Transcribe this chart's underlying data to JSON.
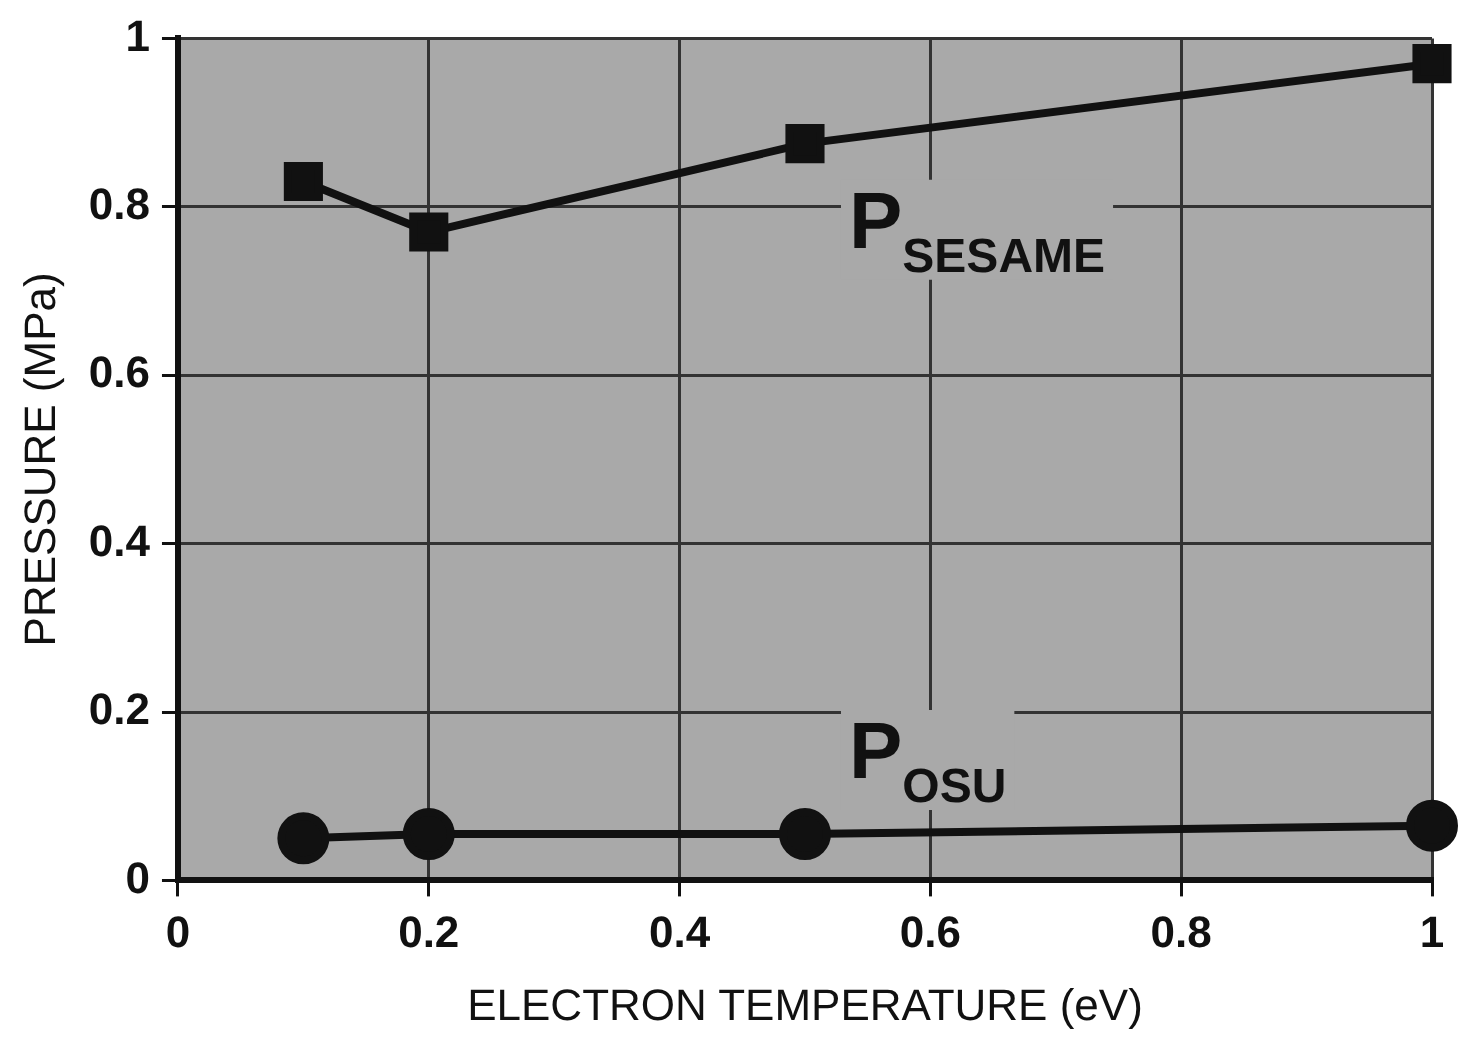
{
  "chart_data": {
    "type": "line",
    "xlabel": "ELECTRON TEMPERATURE (eV)",
    "ylabel": "PRESSURE (MPa)",
    "xlim": [
      0,
      1
    ],
    "xticks": [
      0,
      0.2,
      0.4,
      0.6,
      0.8,
      1
    ],
    "ylim": [
      0,
      1
    ],
    "yticks": [
      0,
      0.2,
      0.4,
      0.6,
      0.8,
      1
    ],
    "grid": true,
    "legend": false,
    "line_style": "solid",
    "series": [
      {
        "name": "P$_{SESAME}$",
        "color": "#111111",
        "marker": "square",
        "x": [
          0.1,
          0.2,
          0.5,
          1
        ],
        "values": [
          0.83,
          0.77,
          0.875,
          0.97
        ]
      },
      {
        "name": "P$_{OSU}$",
        "color": "#111111",
        "marker": "circle",
        "x": [
          0.1,
          0.2,
          0.5,
          1
        ],
        "values": [
          0.05,
          0.055,
          0.055,
          0.065
        ]
      }
    ]
  }
}
